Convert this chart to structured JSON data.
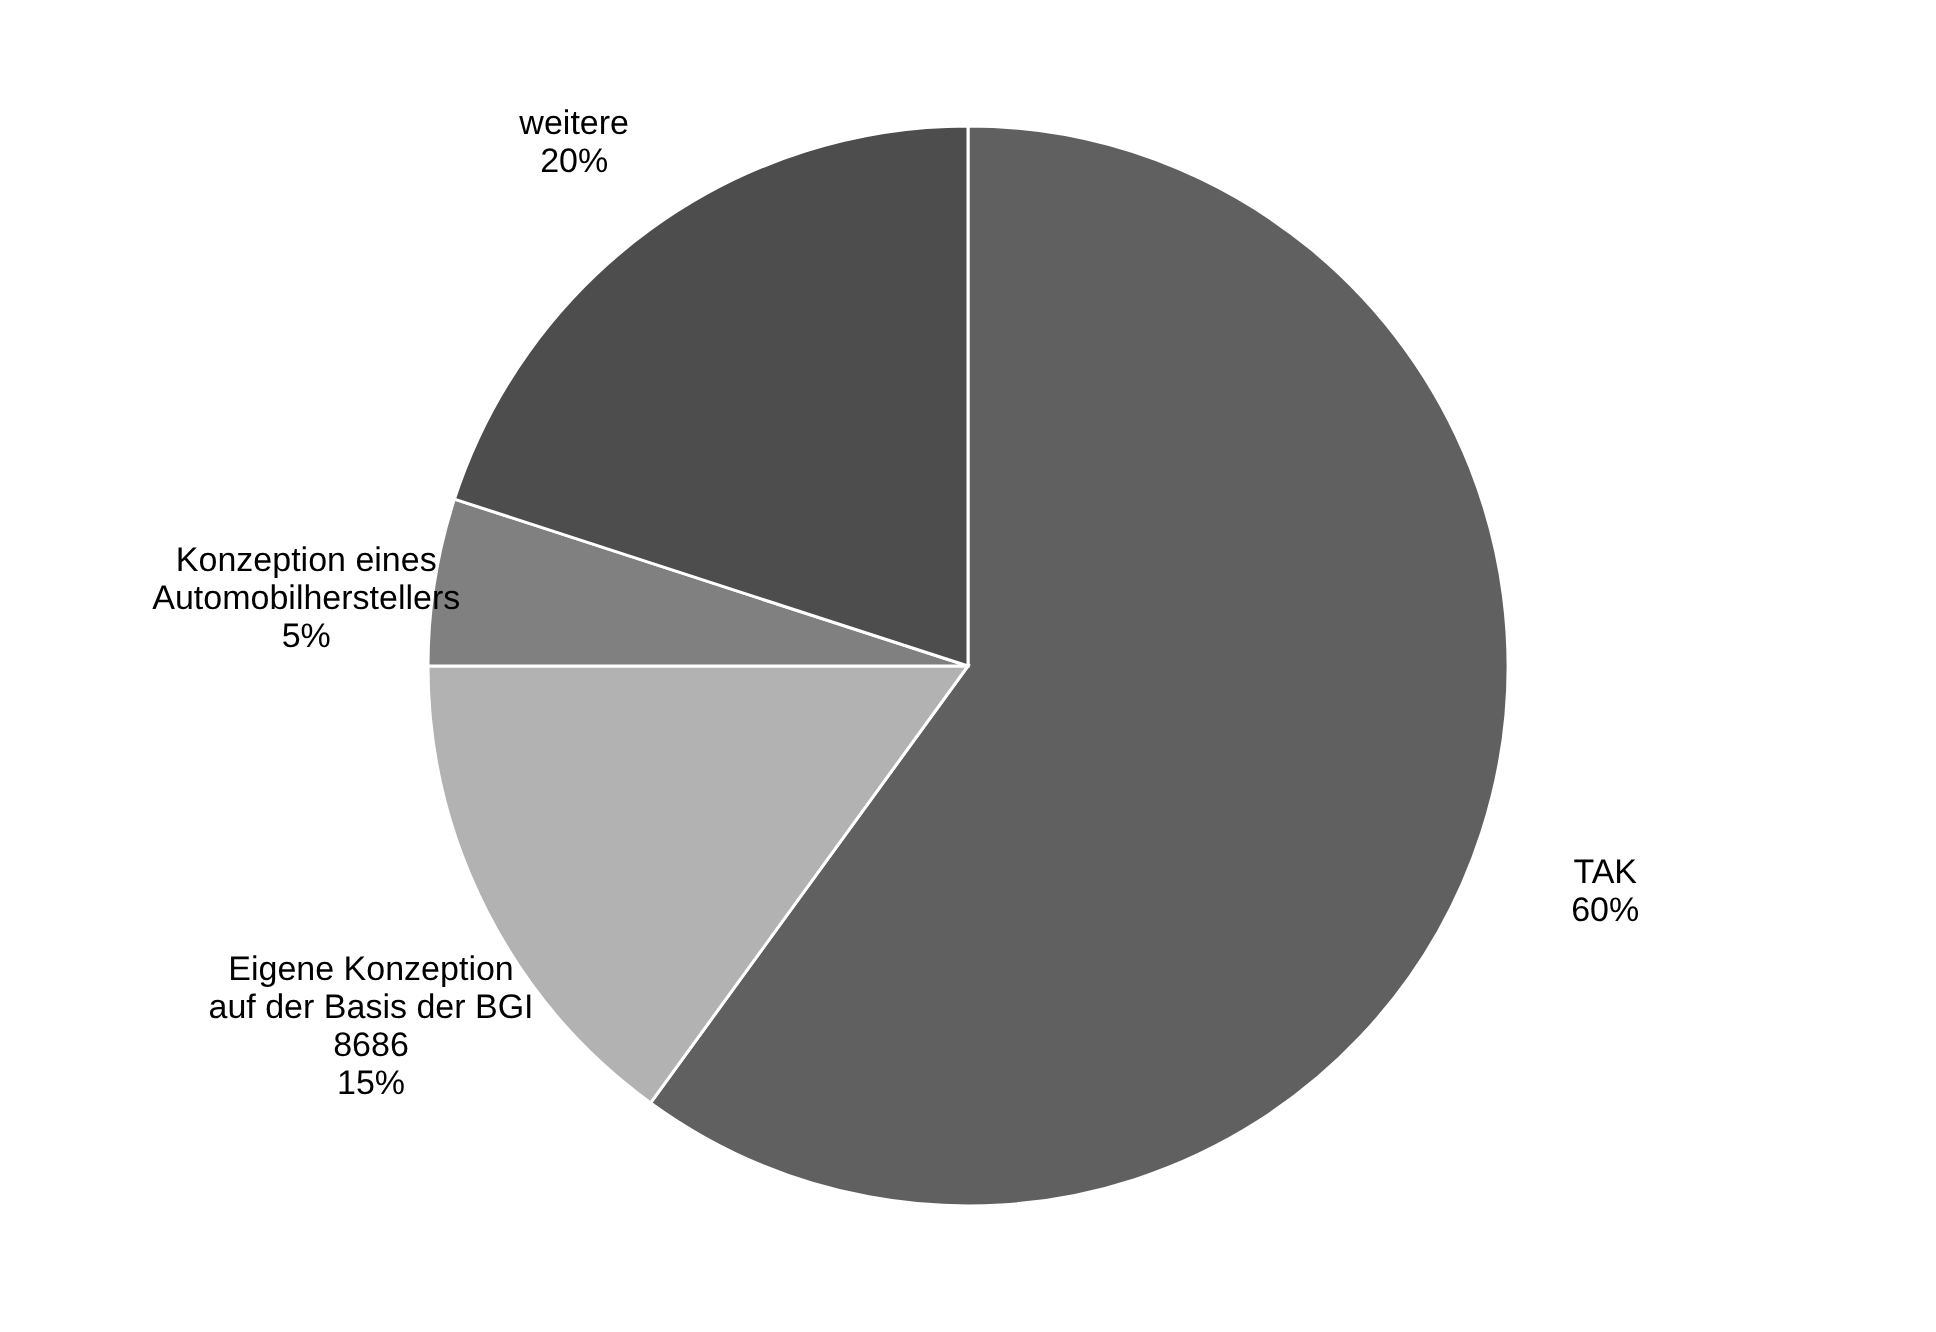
{
  "chart_data": {
    "type": "pie",
    "categories": [
      "TAK",
      "Eigene Konzeption\nauf der Basis der BGI\n8686",
      "Konzeption eines\nAutomobilherstellers",
      "weitere"
    ],
    "values": [
      60,
      15,
      5,
      20
    ],
    "value_labels": [
      "60%",
      "15%",
      "5%",
      "20%"
    ],
    "colors": [
      "#606060",
      "#b2b2b2",
      "#808080",
      "#4d4d4d"
    ],
    "legend": false
  }
}
